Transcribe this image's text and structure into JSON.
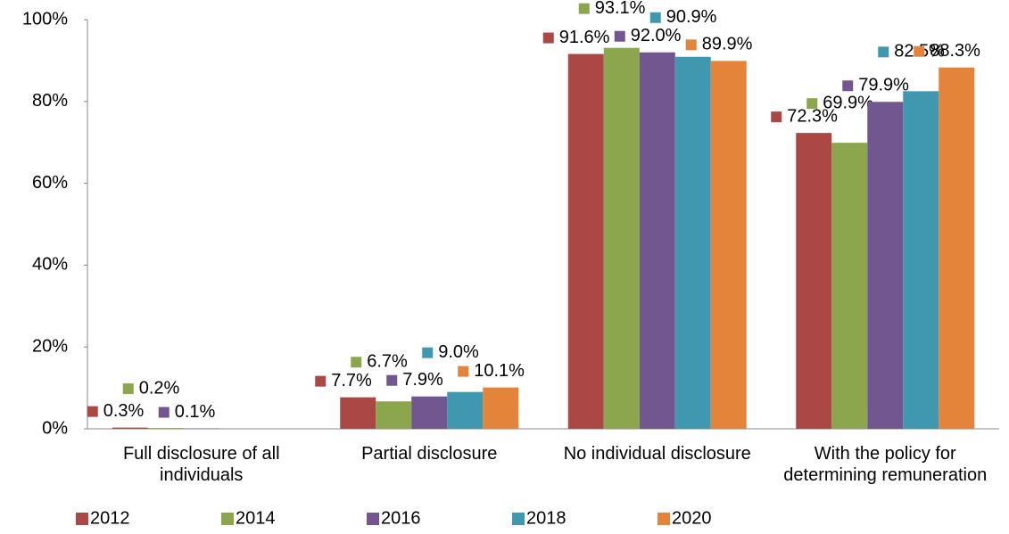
{
  "chart_data": {
    "type": "bar",
    "categories": [
      "Full disclosure of all individuals",
      "Partial disclosure",
      "No individual disclosure",
      "With the policy for determining remuneration"
    ],
    "series": [
      {
        "name": "2012",
        "color": "#ab4744",
        "values": [
          0.3,
          7.7,
          91.6,
          72.3
        ],
        "value_labels": [
          "0.3%",
          "7.7%",
          "91.6%",
          "72.3%"
        ]
      },
      {
        "name": "2014",
        "color": "#8ba64c",
        "values": [
          0.2,
          6.7,
          93.1,
          69.9
        ],
        "value_labels": [
          "0.2%",
          "6.7%",
          "93.1%",
          "69.9%"
        ]
      },
      {
        "name": "2016",
        "color": "#715690",
        "values": [
          0.1,
          7.9,
          92.0,
          79.9
        ],
        "value_labels": [
          "0.1%",
          "7.9%",
          "92.0%",
          "79.9%"
        ]
      },
      {
        "name": "2018",
        "color": "#3f98af",
        "values": [
          null,
          9.0,
          90.9,
          82.5
        ],
        "value_labels": [
          null,
          "9.0%",
          "90.9%",
          "82.5%"
        ]
      },
      {
        "name": "2020",
        "color": "#e3843a",
        "values": [
          null,
          10.1,
          89.9,
          88.3
        ],
        "value_labels": [
          null,
          "10.1%",
          "89.9%",
          "88.3%"
        ]
      }
    ],
    "ylim": [
      0,
      100
    ],
    "yticks": [
      {
        "value": 0,
        "label": "0%"
      },
      {
        "value": 20,
        "label": "20%"
      },
      {
        "value": 40,
        "label": "40%"
      },
      {
        "value": 60,
        "label": "60%"
      },
      {
        "value": 80,
        "label": "80%"
      },
      {
        "value": 100,
        "label": "100%"
      }
    ],
    "legend": "bottom"
  }
}
